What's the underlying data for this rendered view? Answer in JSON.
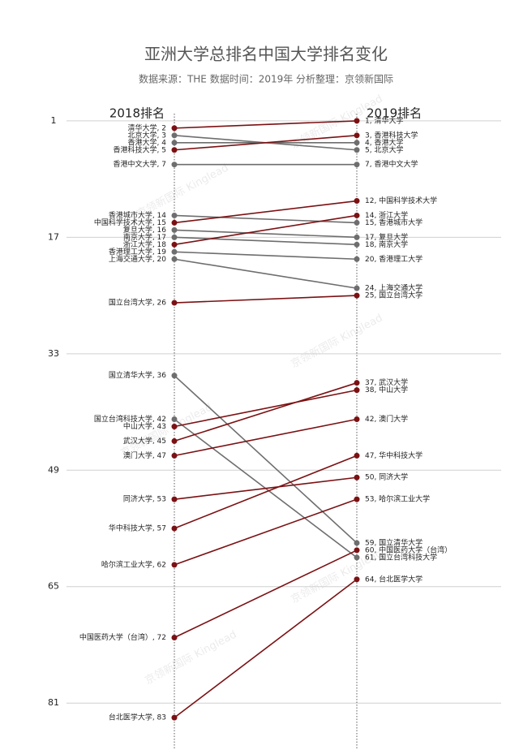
{
  "chart_data": {
    "type": "slope",
    "title": "亚洲大学总排名中国大学排名变化",
    "subtitle": "数据来源：THE  数据时间：2019年  分析整理：京领新国际",
    "categories": [
      "2018排名",
      "2019排名"
    ],
    "ylim": [
      -2,
      87
    ],
    "reversed": true,
    "yticks": [
      1,
      17,
      33,
      49,
      65,
      81
    ],
    "grid": true,
    "watermark": "京领新国际 Kinglead",
    "series": [
      {
        "color": "#7b1113",
        "values": [
          2,
          1
        ],
        "value_labels": [
          "清华大学, 2",
          "1, 清华大学"
        ]
      },
      {
        "color": "#6e6e6e",
        "values": [
          3,
          5
        ],
        "value_labels": [
          "北京大学, 3",
          "5, 北京大学"
        ]
      },
      {
        "color": "#6e6e6e",
        "values": [
          4,
          4
        ],
        "value_labels": [
          "香港大学, 4",
          "4, 香港大学"
        ]
      },
      {
        "color": "#7b1113",
        "values": [
          5,
          3
        ],
        "value_labels": [
          "香港科技大学, 5",
          "3, 香港科技大学"
        ]
      },
      {
        "color": "#6e6e6e",
        "values": [
          7,
          7
        ],
        "value_labels": [
          "香港中文大学, 7",
          "7, 香港中文大学"
        ]
      },
      {
        "color": "#6e6e6e",
        "values": [
          14,
          15
        ],
        "value_labels": [
          "香港城市大学, 14",
          "15, 香港城市大学"
        ]
      },
      {
        "color": "#7b1113",
        "values": [
          15,
          12
        ],
        "value_labels": [
          "中国科学技术大学, 15",
          "12, 中国科学技术大学"
        ]
      },
      {
        "color": "#6e6e6e",
        "values": [
          16,
          17
        ],
        "value_labels": [
          "复旦大学, 16",
          "17, 复旦大学"
        ]
      },
      {
        "color": "#6e6e6e",
        "values": [
          17,
          18
        ],
        "value_labels": [
          "南京大学, 17",
          "18, 南京大学"
        ]
      },
      {
        "color": "#7b1113",
        "values": [
          18,
          14
        ],
        "value_labels": [
          "浙江大学, 18",
          "14, 浙江大学"
        ]
      },
      {
        "color": "#6e6e6e",
        "values": [
          19,
          20
        ],
        "value_labels": [
          "香港理工大学, 19",
          "20, 香港理工大学"
        ]
      },
      {
        "color": "#6e6e6e",
        "values": [
          20,
          24
        ],
        "value_labels": [
          "上海交通大学, 20",
          "24, 上海交通大学"
        ]
      },
      {
        "color": "#7b1113",
        "values": [
          26,
          25
        ],
        "value_labels": [
          "国立台湾大学, 26",
          "25, 国立台湾大学"
        ]
      },
      {
        "color": "#6e6e6e",
        "values": [
          36,
          59
        ],
        "value_labels": [
          "国立清华大学, 36",
          "59, 国立清华大学"
        ]
      },
      {
        "color": "#6e6e6e",
        "values": [
          42,
          61
        ],
        "value_labels": [
          "国立台湾科技大学, 42",
          "61, 国立台湾科技大学"
        ]
      },
      {
        "color": "#7b1113",
        "values": [
          43,
          38
        ],
        "value_labels": [
          "中山大学, 43",
          "38, 中山大学"
        ]
      },
      {
        "color": "#7b1113",
        "values": [
          45,
          37
        ],
        "value_labels": [
          "武汉大学, 45",
          "37, 武汉大学"
        ]
      },
      {
        "color": "#7b1113",
        "values": [
          47,
          42
        ],
        "value_labels": [
          "澳门大学, 47",
          "42, 澳门大学"
        ]
      },
      {
        "color": "#7b1113",
        "values": [
          53,
          50
        ],
        "value_labels": [
          "同济大学, 53",
          "50, 同济大学"
        ]
      },
      {
        "color": "#7b1113",
        "values": [
          57,
          47
        ],
        "value_labels": [
          "华中科技大学, 57",
          "47, 华中科技大学"
        ]
      },
      {
        "color": "#7b1113",
        "values": [
          62,
          53
        ],
        "value_labels": [
          "哈尔滨工业大学, 62",
          "53, 哈尔滨工业大学"
        ]
      },
      {
        "color": "#7b1113",
        "values": [
          72,
          60
        ],
        "value_labels": [
          "中国医药大学（台湾）, 72",
          "60, 中国医药大学（台湾）"
        ]
      },
      {
        "color": "#7b1113",
        "values": [
          83,
          64
        ],
        "value_labels": [
          "台北医学大学, 83",
          "64, 台北医学大学"
        ]
      }
    ]
  }
}
